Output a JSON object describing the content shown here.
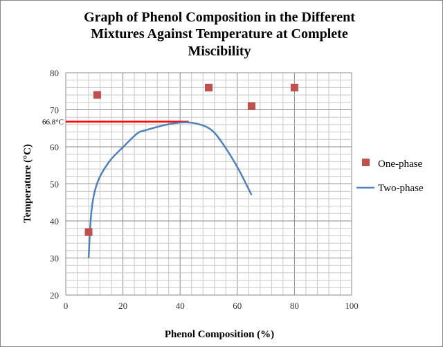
{
  "chart_data": {
    "type": "scatter",
    "title": "Graph of Phenol Composition in the Different Mixtures Against Temperature at Complete Miscibility",
    "title_lines": [
      "Graph of Phenol Composition in the Different",
      "Mixtures Against Temperature at Complete",
      "Miscibility"
    ],
    "xlabel": "Phenol Composition (%)",
    "ylabel": "Temperature (°C)",
    "xlim": [
      0,
      100
    ],
    "ylim": [
      20,
      80
    ],
    "xticks": [
      0,
      20,
      40,
      60,
      80,
      100
    ],
    "yticks": [
      20,
      30,
      40,
      50,
      60,
      70,
      80
    ],
    "grid": true,
    "legend_position": "right",
    "series": [
      {
        "name": "One-phase",
        "type": "scatter",
        "color": "#c0504d",
        "x": [
          8,
          11,
          50,
          65,
          80
        ],
        "y": [
          37,
          74,
          76,
          71,
          76
        ]
      },
      {
        "name": "Two-phase",
        "type": "line",
        "color": "#4f81bd",
        "x": [
          8,
          9,
          11,
          15,
          20,
          25,
          28,
          36,
          42.6,
          47.5,
          51.5,
          55.5,
          60.4,
          65
        ],
        "y": [
          30,
          42.7,
          50.2,
          55.8,
          59.9,
          63.6,
          64.5,
          66.1,
          66.6,
          65.9,
          64.2,
          60.2,
          54,
          47
        ]
      }
    ],
    "annotations": [
      {
        "text": "66.8°C",
        "type": "hline",
        "y": 66.8,
        "x_range": [
          0,
          43
        ],
        "color": "#ff0000"
      }
    ]
  }
}
